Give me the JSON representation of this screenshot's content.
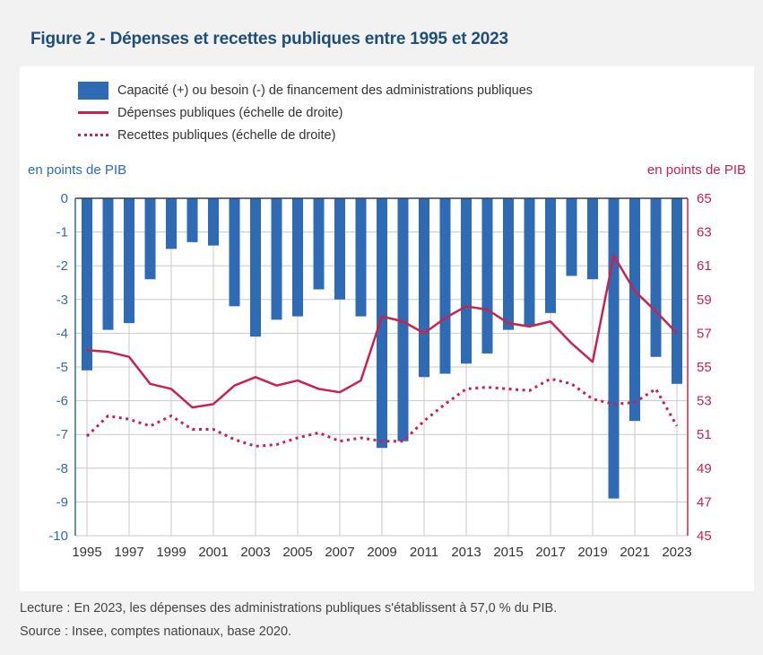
{
  "figure": {
    "title": "Figure 2 - Dépenses et recettes publiques entre 1995 et 2023",
    "lecture": "Lecture : En 2023, les dépenses des administrations publiques s'établissent à 57,0 % du PIB.",
    "source": "Source : Insee, comptes nationaux, base 2020."
  },
  "colors": {
    "bar": "#2e6bb4",
    "line": "#c8234e",
    "left_axis": "#2e6bb4",
    "right_axis": "#c8234e",
    "title": "#1f4e7a"
  },
  "chart_data": {
    "type": "bar",
    "title": "Figure 2 - Dépenses et recettes publiques entre 1995 et 2023",
    "xlabel": "",
    "ylabel_left": "en points de PIB",
    "ylabel_right": "en points de PIB",
    "ylim_left": [
      -10,
      0
    ],
    "ylim_right": [
      45,
      65
    ],
    "yticks_left": [
      "0",
      "-1",
      "-2",
      "-3",
      "-4",
      "-5",
      "-6",
      "-7",
      "-8",
      "-9",
      "-10"
    ],
    "yticks_right": [
      "65",
      "63",
      "61",
      "59",
      "57",
      "55",
      "53",
      "51",
      "49",
      "47",
      "45"
    ],
    "xtick_labels": [
      "1995",
      "1997",
      "1999",
      "2001",
      "2003",
      "2005",
      "2007",
      "2009",
      "2011",
      "2013",
      "2015",
      "2017",
      "2019",
      "2021",
      "2023"
    ],
    "grid": true,
    "legend_position": "top-left",
    "categories": [
      1995,
      1996,
      1997,
      1998,
      1999,
      2000,
      2001,
      2002,
      2003,
      2004,
      2005,
      2006,
      2007,
      2008,
      2009,
      2010,
      2011,
      2012,
      2013,
      2014,
      2015,
      2016,
      2017,
      2018,
      2019,
      2020,
      2021,
      2022,
      2023
    ],
    "series": [
      {
        "name": "Capacité (+) ou besoin (-) de financement des administrations publiques",
        "type": "bar",
        "axis": "left",
        "values": [
          -5.1,
          -3.9,
          -3.7,
          -2.4,
          -1.5,
          -1.3,
          -1.4,
          -3.2,
          -4.1,
          -3.6,
          -3.5,
          -2.7,
          -3.0,
          -3.5,
          -7.4,
          -7.2,
          -5.3,
          -5.2,
          -4.9,
          -4.6,
          -3.9,
          -3.8,
          -3.4,
          -2.3,
          -2.4,
          -8.9,
          -6.6,
          -4.7,
          -5.5
        ]
      },
      {
        "name": "Dépenses publiques (échelle de droite)",
        "type": "line",
        "style": "solid",
        "axis": "right",
        "values": [
          56.0,
          55.9,
          55.6,
          54.0,
          53.7,
          52.6,
          52.8,
          53.9,
          54.4,
          53.9,
          54.2,
          53.7,
          53.5,
          54.2,
          58.0,
          57.7,
          57.0,
          57.9,
          58.6,
          58.4,
          57.6,
          57.4,
          57.7,
          56.4,
          55.3,
          61.6,
          59.5,
          58.3,
          57.0
        ]
      },
      {
        "name": "Recettes publiques (échelle de droite)",
        "type": "line",
        "style": "dotted",
        "axis": "right",
        "values": [
          50.9,
          52.1,
          51.9,
          51.5,
          52.1,
          51.3,
          51.3,
          50.7,
          50.3,
          50.4,
          50.8,
          51.1,
          50.6,
          50.8,
          50.6,
          50.6,
          51.8,
          52.8,
          53.7,
          53.8,
          53.7,
          53.6,
          54.3,
          54.0,
          53.1,
          52.8,
          52.9,
          53.7,
          51.5
        ]
      }
    ]
  }
}
